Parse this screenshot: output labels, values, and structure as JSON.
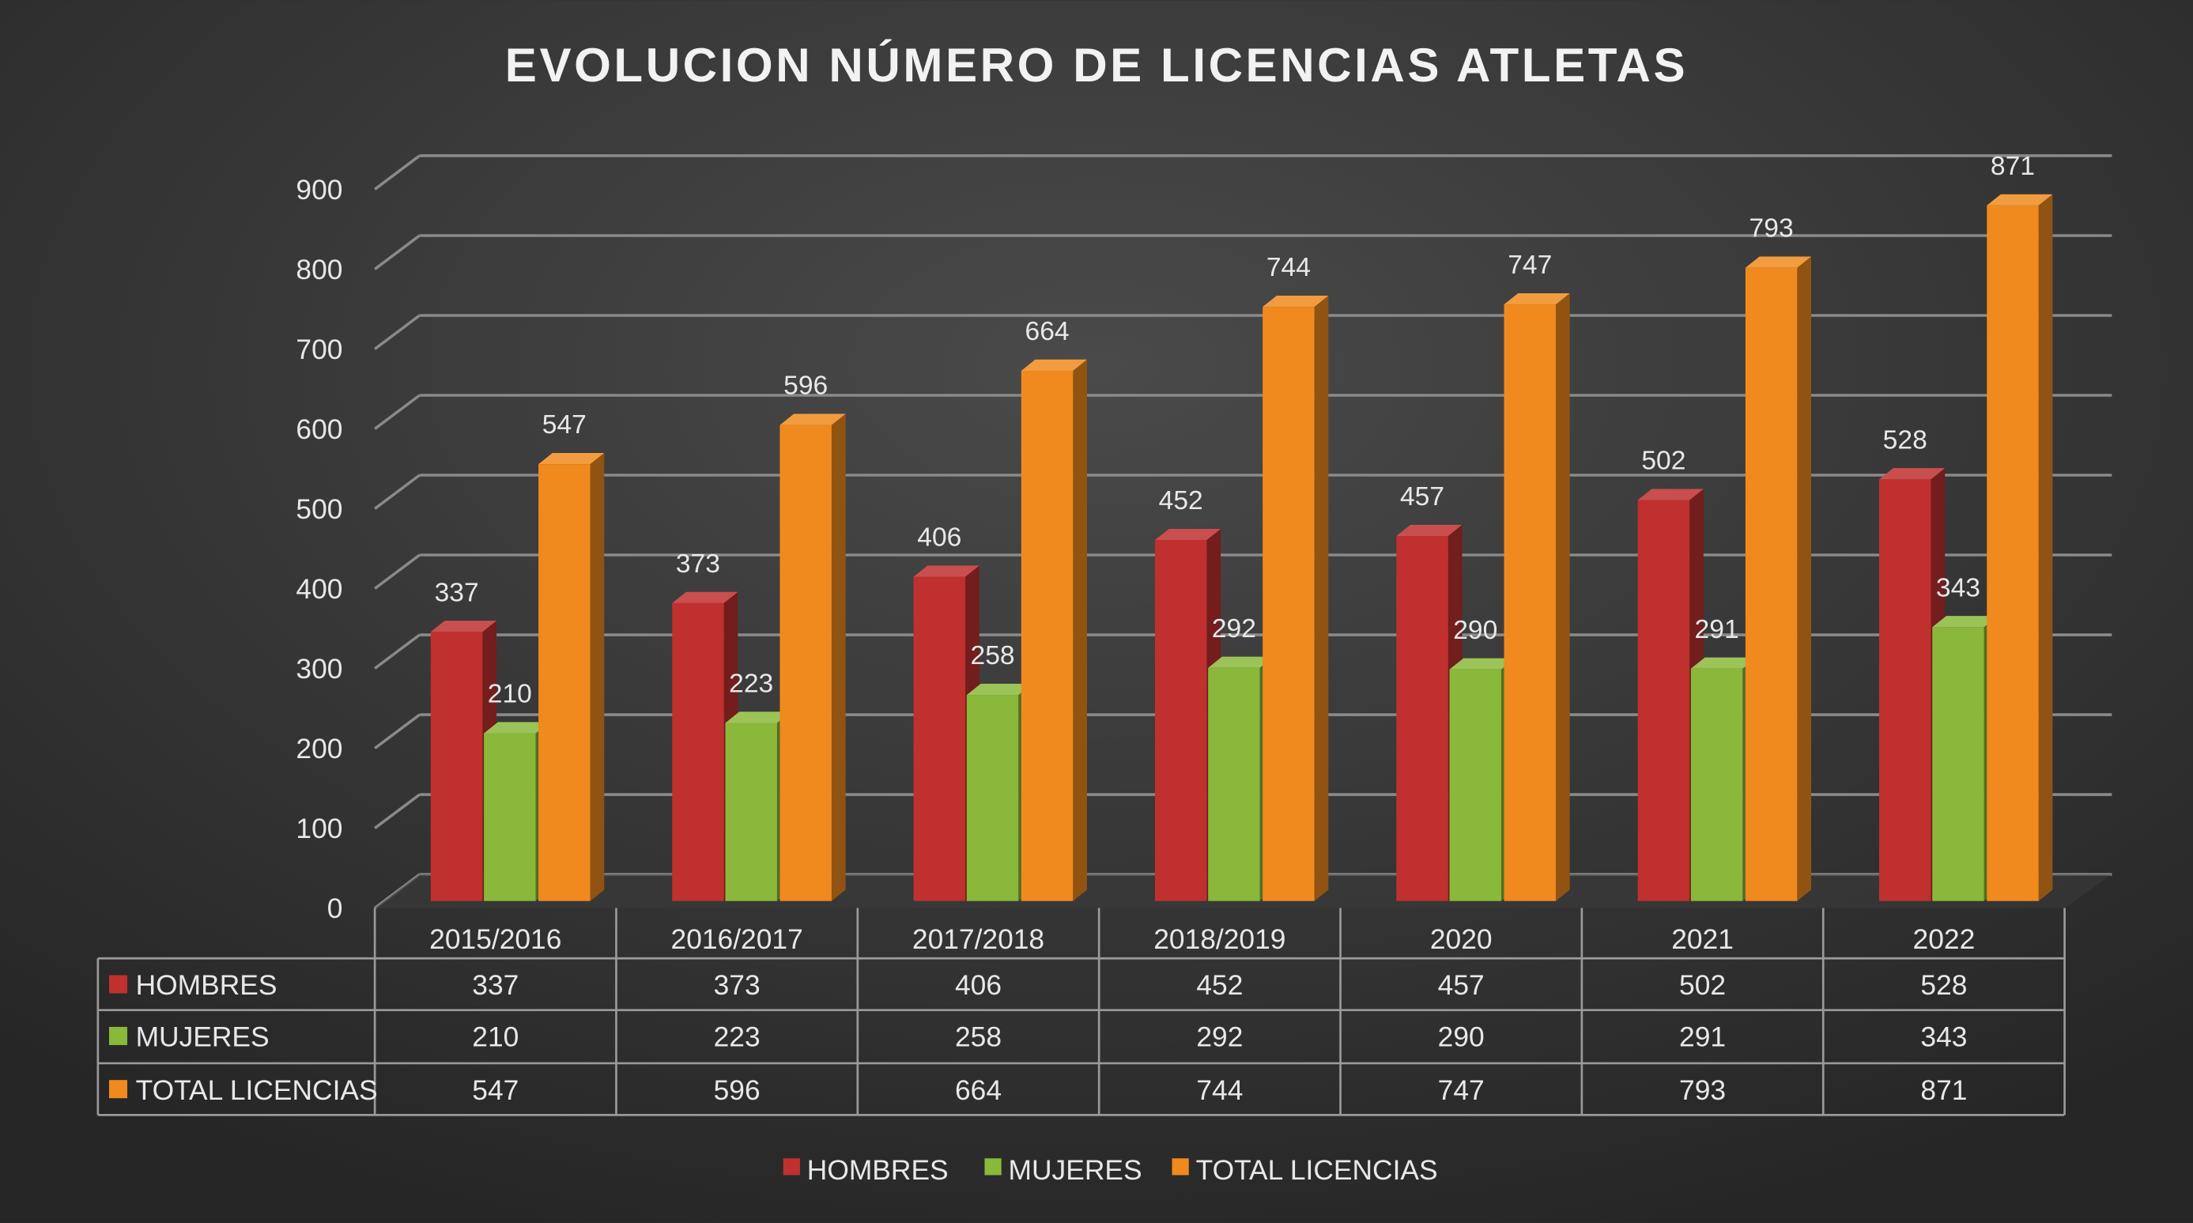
{
  "chart_data": {
    "type": "bar",
    "subtype": "3d-clustered-column-with-data-table",
    "title": "EVOLUCION NÚMERO DE LICENCIAS ATLETAS",
    "categories": [
      "2015/2016",
      "2016/2017",
      "2017/2018",
      "2018/2019",
      "2020",
      "2021",
      "2022"
    ],
    "series": [
      {
        "name": "HOMBRES",
        "values": [
          337,
          373,
          406,
          452,
          457,
          502,
          528
        ],
        "color": "#c0302f"
      },
      {
        "name": "MUJERES",
        "values": [
          210,
          223,
          258,
          292,
          290,
          291,
          343
        ],
        "color": "#8ab83a"
      },
      {
        "name": "TOTAL LICENCIAS",
        "values": [
          547,
          596,
          664,
          744,
          747,
          793,
          871
        ],
        "color": "#f08a1e"
      }
    ],
    "ylim": [
      0,
      900
    ],
    "yticks": [
      0,
      100,
      200,
      300,
      400,
      500,
      600,
      700,
      800,
      900
    ],
    "grid": true,
    "data_labels": true,
    "legend_position": "bottom",
    "background": "#2e2e2e"
  }
}
